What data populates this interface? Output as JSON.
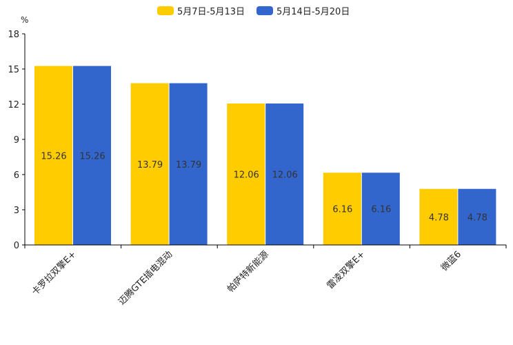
{
  "chart_data": {
    "type": "bar",
    "title": "",
    "ylabel": "%",
    "xlabel": "",
    "ylim": [
      0,
      18
    ],
    "yticks": [
      "0",
      "3",
      "6",
      "9",
      "12",
      "15",
      "18"
    ],
    "categories": [
      "卡罗拉双擎E+",
      "迈腾GTE插电混动",
      "帕萨特新能源",
      "雷凌双擎E+",
      "微蓝6"
    ],
    "series": [
      {
        "name": "5月7日-5月13日",
        "color": "#ffcc00",
        "values": [
          15.26,
          13.79,
          12.06,
          6.16,
          4.78
        ]
      },
      {
        "name": "5月14日-5月20日",
        "color": "#3366cc",
        "values": [
          15.26,
          13.79,
          12.06,
          6.16,
          4.78
        ]
      }
    ],
    "legend": "top-center",
    "grid": false
  }
}
